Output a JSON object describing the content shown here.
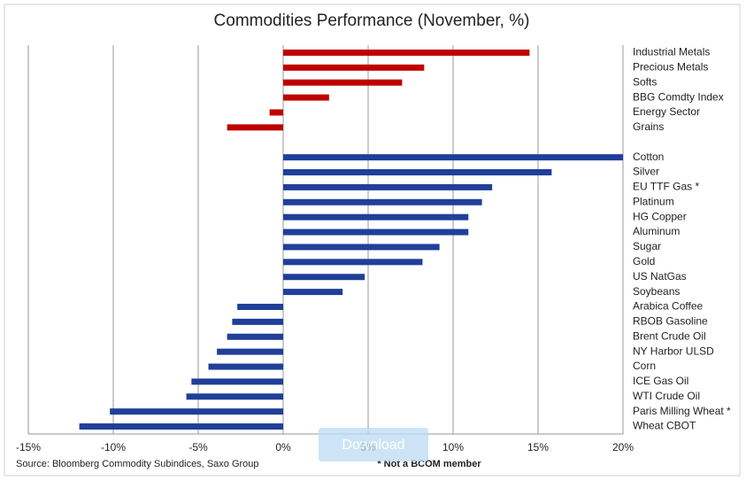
{
  "chart_data": {
    "type": "hbar",
    "title": "Commodities Performance (November, %)",
    "categories": [
      "Industrial Metals",
      "Precious Metals",
      "Softs",
      "BBG Comdty Index",
      "Energy Sector",
      "Grains",
      null,
      "Cotton",
      "Silver",
      "EU TTF Gas *",
      "Platinum",
      "HG Copper",
      "Aluminum",
      "Sugar",
      "Gold",
      "US NatGas",
      "Soybeans",
      "Arabica Coffee",
      "RBOB Gasoline",
      "Brent Crude Oil",
      "NY Harbor ULSD",
      "Corn",
      "ICE Gas Oil",
      "WTI Crude Oil",
      "Paris Milling Wheat *",
      "Wheat CBOT"
    ],
    "values": [
      14.5,
      8.3,
      7.0,
      2.7,
      -0.8,
      -3.3,
      null,
      20.0,
      15.8,
      12.3,
      11.7,
      10.9,
      10.9,
      9.2,
      8.2,
      4.8,
      3.5,
      -2.7,
      -3.0,
      -3.3,
      -3.9,
      -4.4,
      -5.4,
      -5.7,
      -10.2,
      -12.0
    ],
    "colors": [
      "#c00000",
      "#c00000",
      "#c00000",
      "#c00000",
      "#c00000",
      "#c00000",
      null,
      "#1f3f99",
      "#1f3f99",
      "#1f3f99",
      "#1f3f99",
      "#1f3f99",
      "#1f3f99",
      "#1f3f99",
      "#1f3f99",
      "#1f3f99",
      "#1f3f99",
      "#1f3f99",
      "#1f3f99",
      "#1f3f99",
      "#1f3f99",
      "#1f3f99",
      "#1f3f99",
      "#1f3f99",
      "#1f3f99",
      "#1f3f99"
    ],
    "xlim": [
      -15,
      20
    ],
    "xticks": [
      {
        "value": -15,
        "label": "-15%"
      },
      {
        "value": -10,
        "label": "-10%"
      },
      {
        "value": -5,
        "label": "-5%"
      },
      {
        "value": 0,
        "label": "0%"
      },
      {
        "value": 5,
        "label": "5%"
      },
      {
        "value": 10,
        "label": "10%"
      },
      {
        "value": 15,
        "label": "15%"
      },
      {
        "value": 20,
        "label": "20%"
      }
    ],
    "grid": true,
    "source": "Source: Bloomberg Commodity Subindices, Saxo Group",
    "footnote": "* Not a BCOM member"
  },
  "download_button": "Download"
}
